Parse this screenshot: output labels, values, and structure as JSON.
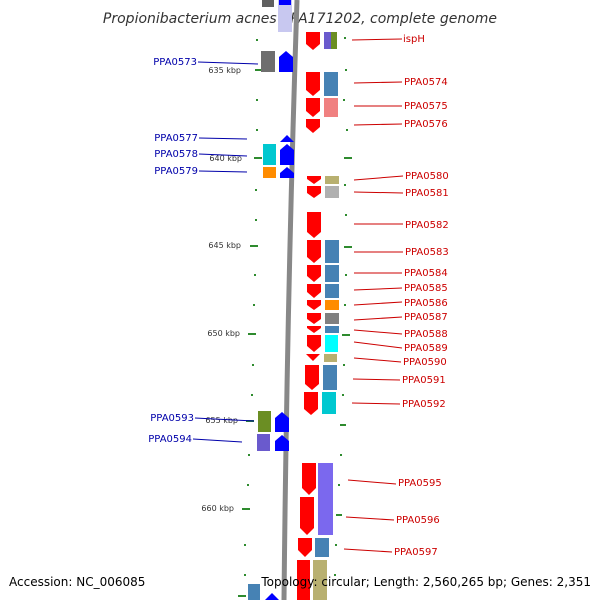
{
  "title": "Propionibacterium acnes KPA171202, complete genome",
  "footer": {
    "accession": "Accession: NC_006085",
    "topology": "Topology: circular; Length: 2,560,265 bp; Genes: 2,351"
  },
  "kbp_labels": [
    "635 kbp",
    "640 kbp",
    "645 kbp",
    "650 kbp",
    "655 kbp",
    "660 kbp"
  ],
  "left_genes": [
    "PPA0573",
    "PPA0577",
    "PPA0578",
    "PPA0579",
    "PPA0593",
    "PPA0594"
  ],
  "right_genes": [
    "ispH",
    "PPA0574",
    "PPA0575",
    "PPA0576",
    "PPA0580",
    "PPA0581",
    "PPA0582",
    "PPA0583",
    "PPA0584",
    "PPA0585",
    "PPA0586",
    "PPA0587",
    "PPA0588",
    "PPA0589",
    "PPA0590",
    "PPA0591",
    "PPA0592",
    "PPA0595",
    "PPA0596",
    "PPA0597"
  ],
  "colors": {
    "gene_blue": "#0000ff",
    "gene_red": "#ff0000",
    "label_blue": "#0000aa",
    "label_red": "#cc0000",
    "backbone": "#888888",
    "tick_green": "#2e8b2e"
  }
}
